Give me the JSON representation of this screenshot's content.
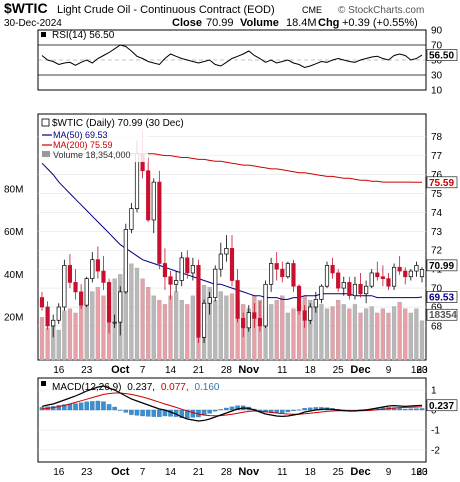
{
  "header": {
    "symbol": "$WTIC",
    "description": "Light Crude Oil - Continuous Contract (EOD)",
    "exchange": "CME",
    "brand": "© StockCharts.com",
    "date": "30-Dec-2024",
    "close_label": "Close",
    "close": "70.99",
    "volume_label": "Volume",
    "volume": "18.4M",
    "chg_label": "Chg",
    "chg": "+0.39 (+0.55%)"
  },
  "chart_data": [
    {
      "type": "line",
      "panel": "rsi",
      "title": "RSI(14) 56.50",
      "series": [
        {
          "name": "RSI(14)",
          "values": [
            56,
            50,
            48,
            44,
            46,
            47,
            43,
            47,
            50,
            46,
            52,
            56,
            60,
            65,
            70,
            68,
            62,
            55,
            52,
            48,
            46,
            44,
            52,
            58,
            55,
            52,
            50,
            48,
            46,
            48,
            50,
            44,
            42,
            47,
            52,
            55,
            58,
            62,
            56,
            52,
            47,
            50,
            46,
            48,
            50,
            46,
            44,
            40,
            42,
            45,
            48,
            47,
            50,
            52,
            50,
            48,
            47,
            50,
            52,
            54,
            55,
            52,
            50,
            56,
            58,
            56,
            50,
            52,
            56.5
          ]
        }
      ],
      "ylim": [
        10,
        90
      ],
      "yticks": [
        90,
        70,
        50,
        30,
        10
      ],
      "ylines": [
        70,
        30
      ],
      "last_value_label": "56.50"
    },
    {
      "type": "candlestick",
      "panel": "price",
      "title": "$WTIC (Daily) 70.99 (30 Dec)",
      "series": [
        {
          "name": "MA(50) 69.53",
          "color": "#000080"
        },
        {
          "name": "MA(200) 75.59",
          "color": "#cc0000"
        },
        {
          "name": "Volume 18,354,000",
          "color": "#888888"
        }
      ],
      "ohlc": [
        [
          69.5,
          69.8,
          68.8,
          69.0
        ],
        [
          69.0,
          69.3,
          67.8,
          68.0
        ],
        [
          68.0,
          68.6,
          67.4,
          68.3
        ],
        [
          68.3,
          69.2,
          68.1,
          69.0
        ],
        [
          69.0,
          71.5,
          68.8,
          71.2
        ],
        [
          71.2,
          71.8,
          70.0,
          70.3
        ],
        [
          70.3,
          71.0,
          69.4,
          69.8
        ],
        [
          69.8,
          70.2,
          68.9,
          69.1
        ],
        [
          69.1,
          70.6,
          69.0,
          70.5
        ],
        [
          70.5,
          71.9,
          70.3,
          71.5
        ],
        [
          71.5,
          72.2,
          70.5,
          70.9
        ],
        [
          70.9,
          71.7,
          69.9,
          70.3
        ],
        [
          70.3,
          70.5,
          67.6,
          68.2
        ],
        [
          68.2,
          68.6,
          67.9,
          68.2
        ],
        [
          68.2,
          70.1,
          67.5,
          69.8
        ],
        [
          69.8,
          73.4,
          69.7,
          73.1
        ],
        [
          73.1,
          74.5,
          72.9,
          74.2
        ],
        [
          74.2,
          77.8,
          74.0,
          77.1
        ],
        [
          77.1,
          78.3,
          75.8,
          76.2
        ],
        [
          76.2,
          76.9,
          73.5,
          73.6
        ],
        [
          73.6,
          75.8,
          72.9,
          75.6
        ],
        [
          75.6,
          76.2,
          71.0,
          71.3
        ],
        [
          71.3,
          72.1,
          69.9,
          70.6
        ],
        [
          70.6,
          70.9,
          69.4,
          70.2
        ],
        [
          70.2,
          70.9,
          69.8,
          70.4
        ],
        [
          70.4,
          71.9,
          70.1,
          71.6
        ],
        [
          71.6,
          72.0,
          70.5,
          70.8
        ],
        [
          70.8,
          71.6,
          70.4,
          71.2
        ],
        [
          71.2,
          71.5,
          67.1,
          67.4
        ],
        [
          67.4,
          69.4,
          67.1,
          69.2
        ],
        [
          69.2,
          69.8,
          68.6,
          69.5
        ],
        [
          69.5,
          71.2,
          69.3,
          71.0
        ],
        [
          71.0,
          72.4,
          70.6,
          71.8
        ],
        [
          71.8,
          72.8,
          71.4,
          72.1
        ],
        [
          72.1,
          72.8,
          70.1,
          70.4
        ],
        [
          70.4,
          71.0,
          68.2,
          68.4
        ],
        [
          68.4,
          68.7,
          67.4,
          67.9
        ],
        [
          67.9,
          69.1,
          67.7,
          68.7
        ],
        [
          68.7,
          69.2,
          67.9,
          68.4
        ],
        [
          68.4,
          69.3,
          67.7,
          68.0
        ],
        [
          68.0,
          70.4,
          67.9,
          70.2
        ],
        [
          70.2,
          71.6,
          69.8,
          71.3
        ],
        [
          71.3,
          71.9,
          70.4,
          71.0
        ],
        [
          71.0,
          71.4,
          70.3,
          70.6
        ],
        [
          70.6,
          71.4,
          70.5,
          71.3
        ],
        [
          71.3,
          71.5,
          69.8,
          70.1
        ],
        [
          70.1,
          70.2,
          68.6,
          68.8
        ],
        [
          68.8,
          69.1,
          67.9,
          68.3
        ],
        [
          68.3,
          69.2,
          68.1,
          69.0
        ],
        [
          69.0,
          69.8,
          68.7,
          69.4
        ],
        [
          69.4,
          70.2,
          69.2,
          70.1
        ],
        [
          70.1,
          71.4,
          70.0,
          71.2
        ],
        [
          71.2,
          71.6,
          70.5,
          70.8
        ],
        [
          70.8,
          71.0,
          69.8,
          70.0
        ],
        [
          70.0,
          70.6,
          69.6,
          70.3
        ],
        [
          70.3,
          70.6,
          69.4,
          69.6
        ],
        [
          69.6,
          70.6,
          69.4,
          70.2
        ],
        [
          70.2,
          70.8,
          69.5,
          69.7
        ],
        [
          69.7,
          70.4,
          69.2,
          70.1
        ],
        [
          70.1,
          71.0,
          70.0,
          70.8
        ],
        [
          70.8,
          71.4,
          70.4,
          70.6
        ],
        [
          70.6,
          71.2,
          70.1,
          70.5
        ],
        [
          70.5,
          70.8,
          69.9,
          70.1
        ],
        [
          70.1,
          71.3,
          69.9,
          71.1
        ],
        [
          71.1,
          71.7,
          70.7,
          70.9
        ],
        [
          70.9,
          71.1,
          70.2,
          70.6
        ],
        [
          70.6,
          71.0,
          70.4,
          70.9
        ],
        [
          70.9,
          71.4,
          70.6,
          71.2
        ],
        [
          70.6,
          71.1,
          70.3,
          70.99
        ]
      ],
      "ma50": [
        76.6,
        76.3,
        76.0,
        75.6,
        75.3,
        75.0,
        74.7,
        74.4,
        74.1,
        73.8,
        73.5,
        73.2,
        72.9,
        72.6,
        72.3,
        72.1,
        71.9,
        71.7,
        71.5,
        71.4,
        71.3,
        71.2,
        71.1,
        71.0,
        70.9,
        70.8,
        70.7,
        70.6,
        70.5,
        70.4,
        70.3,
        70.2,
        70.2,
        70.1,
        70.0,
        69.9,
        69.8,
        69.7,
        69.6,
        69.6,
        69.5,
        69.5,
        69.5,
        69.4,
        69.4,
        69.5,
        69.5,
        69.6,
        69.6,
        69.6,
        69.7,
        69.7,
        69.7,
        69.7,
        69.7,
        69.7,
        69.6,
        69.6,
        69.6,
        69.6,
        69.5,
        69.5,
        69.5,
        69.5,
        69.5,
        69.5,
        69.5,
        69.5,
        69.53
      ],
      "ma200": [
        77.1,
        77.1,
        77.1,
        77.1,
        77.1,
        77.1,
        77.1,
        77.1,
        77.1,
        77.1,
        77.1,
        77.1,
        77.1,
        77.1,
        77.1,
        77.1,
        77.1,
        77.1,
        77.1,
        77.1,
        77.1,
        77.05,
        77.0,
        77.0,
        76.95,
        76.9,
        76.9,
        76.85,
        76.8,
        76.8,
        76.75,
        76.7,
        76.7,
        76.65,
        76.6,
        76.55,
        76.5,
        76.5,
        76.45,
        76.4,
        76.35,
        76.3,
        76.3,
        76.25,
        76.2,
        76.15,
        76.1,
        76.1,
        76.05,
        76.0,
        75.95,
        75.9,
        75.9,
        75.85,
        75.8,
        75.8,
        75.75,
        75.7,
        75.7,
        75.65,
        75.65,
        75.6,
        75.6,
        75.6,
        75.6,
        75.6,
        75.6,
        75.59,
        75.59
      ],
      "volume_m": [
        20,
        15,
        16,
        14,
        23,
        24,
        22,
        28,
        26,
        32,
        34,
        30,
        36,
        38,
        40,
        42,
        45,
        43,
        38,
        34,
        30,
        28,
        26,
        30,
        32,
        28,
        26,
        30,
        33,
        35,
        34,
        28,
        32,
        30,
        31,
        28,
        26,
        24,
        30,
        28,
        24,
        26,
        28,
        30,
        22,
        24,
        26,
        30,
        28,
        27,
        26,
        24,
        25,
        28,
        26,
        24,
        26,
        22,
        24,
        25,
        22,
        24,
        22,
        25,
        27,
        24,
        22,
        24,
        18.354
      ],
      "ylim": [
        66.2,
        79.2
      ],
      "yticks": [
        78,
        77,
        76,
        75,
        74,
        73,
        72,
        71,
        70,
        69,
        68
      ],
      "volume_ylim": [
        0,
        115
      ],
      "volume_ticks": [
        "80M",
        "60M",
        "40M",
        "20M"
      ],
      "price_label": "70.99",
      "ma200_label": "75.59",
      "ma50_label": "69.53",
      "volume_label": "18354"
    },
    {
      "type": "line",
      "panel": "macd",
      "title": "MACD(12,26,9) 0.237, 0.077, 0.160",
      "title_parts": [
        "MACD(12,26,9)",
        "0.237,",
        "0.077,",
        "0.160"
      ],
      "series": [
        {
          "name": "MACD",
          "color": "#000000",
          "values": [
            0.18,
            0.25,
            0.3,
            0.4,
            0.5,
            0.6,
            0.7,
            0.82,
            0.95,
            1.05,
            1.15,
            1.2,
            1.1,
            1.0,
            0.85,
            0.7,
            0.55,
            0.45,
            0.35,
            0.25,
            0.15,
            0.05,
            0.0,
            -0.1,
            -0.2,
            -0.35,
            -0.45,
            -0.5,
            -0.55,
            -0.52,
            -0.45,
            -0.35,
            -0.25,
            -0.15,
            -0.05,
            0.05,
            0.1,
            0.08,
            0.0,
            -0.1,
            -0.2,
            -0.25,
            -0.3,
            -0.32,
            -0.3,
            -0.25,
            -0.2,
            -0.1,
            -0.05,
            0.0,
            0.03,
            0.05,
            0.03,
            0.0,
            -0.03,
            -0.05,
            -0.05,
            -0.02,
            0.0,
            0.05,
            0.1,
            0.15,
            0.2,
            0.22,
            0.2,
            0.18,
            0.2,
            0.22,
            0.237
          ]
        },
        {
          "name": "Signal",
          "color": "#cc0000",
          "values": [
            0.05,
            0.08,
            0.12,
            0.17,
            0.23,
            0.3,
            0.38,
            0.46,
            0.54,
            0.62,
            0.7,
            0.78,
            0.82,
            0.85,
            0.85,
            0.82,
            0.78,
            0.72,
            0.65,
            0.57,
            0.48,
            0.39,
            0.3,
            0.22,
            0.13,
            0.04,
            -0.05,
            -0.13,
            -0.2,
            -0.25,
            -0.28,
            -0.29,
            -0.28,
            -0.25,
            -0.21,
            -0.16,
            -0.11,
            -0.07,
            -0.05,
            -0.06,
            -0.09,
            -0.12,
            -0.15,
            -0.18,
            -0.2,
            -0.21,
            -0.21,
            -0.19,
            -0.16,
            -0.13,
            -0.1,
            -0.07,
            -0.05,
            -0.04,
            -0.04,
            -0.04,
            -0.04,
            -0.04,
            -0.03,
            -0.01,
            0.01,
            0.04,
            0.07,
            0.1,
            0.12,
            0.13,
            0.14,
            0.15,
            0.16
          ]
        },
        {
          "name": "Histogram",
          "color": "#2e7ab8",
          "values": [
            0.13,
            0.17,
            0.18,
            0.23,
            0.27,
            0.3,
            0.32,
            0.36,
            0.41,
            0.43,
            0.45,
            0.42,
            0.28,
            0.15,
            0.0,
            -0.12,
            -0.23,
            -0.27,
            -0.3,
            -0.32,
            -0.33,
            -0.34,
            -0.3,
            -0.32,
            -0.33,
            -0.39,
            -0.4,
            -0.37,
            -0.35,
            -0.27,
            -0.17,
            -0.06,
            0.03,
            0.1,
            0.16,
            0.21,
            0.21,
            0.15,
            0.05,
            -0.04,
            -0.11,
            -0.13,
            -0.15,
            -0.14,
            -0.1,
            -0.04,
            0.01,
            0.09,
            0.11,
            0.13,
            0.13,
            0.12,
            0.08,
            0.04,
            0.01,
            -0.01,
            -0.01,
            0.02,
            0.03,
            0.06,
            0.09,
            0.11,
            0.13,
            0.12,
            0.08,
            0.05,
            0.06,
            0.07,
            0.077
          ]
        }
      ],
      "ylim": [
        -2.6,
        1.6
      ],
      "yticks": [
        1,
        0,
        -1,
        -2
      ],
      "last_value_label": "0.237"
    }
  ],
  "x_axis": {
    "labels": [
      {
        "text": "16",
        "index": 3,
        "bold": false
      },
      {
        "text": "23",
        "index": 8,
        "bold": false
      },
      {
        "text": "Oct",
        "index": 14,
        "bold": true
      },
      {
        "text": "7",
        "index": 18,
        "bold": false
      },
      {
        "text": "14",
        "index": 23,
        "bold": false
      },
      {
        "text": "21",
        "index": 28,
        "bold": false
      },
      {
        "text": "28",
        "index": 33,
        "bold": false
      },
      {
        "text": "Nov",
        "index": 37,
        "bold": true
      },
      {
        "text": "11",
        "index": 43,
        "bold": false
      },
      {
        "text": "18",
        "index": 48,
        "bold": false
      },
      {
        "text": "25",
        "index": 53,
        "bold": false
      },
      {
        "text": "Dec",
        "index": 57,
        "bold": true
      },
      {
        "text": "9",
        "index": 62,
        "bold": false
      },
      {
        "text": "16",
        "index": 67,
        "bold": false
      },
      {
        "text": "23",
        "index": 72,
        "bold": false
      },
      {
        "text": "30",
        "index": 76,
        "bold": false
      }
    ]
  }
}
